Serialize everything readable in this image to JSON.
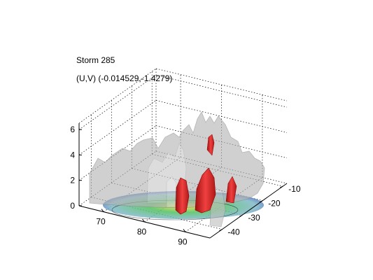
{
  "title_line1": "Storm 285",
  "title_line2": "(U,V) (-0.014529,-1.4279)",
  "chart_data": {
    "type": "3d-isosurface",
    "title": "Storm 285",
    "subtitle": "(U,V) (-0.014529,-1.4279)",
    "x_axis": {
      "label": "",
      "range": [
        64,
        96
      ],
      "ticks": [
        70,
        80,
        90
      ]
    },
    "y_axis": {
      "label": "",
      "range": [
        -46,
        -8
      ],
      "ticks": [
        -10,
        -20,
        -30,
        -40
      ]
    },
    "z_axis": {
      "label": "",
      "range": [
        0,
        6.5
      ],
      "ticks": [
        0,
        2,
        4,
        6
      ]
    },
    "grid": true,
    "surfaces": [
      {
        "color": "#b4b4b4",
        "style": "translucent grey isosurface"
      },
      {
        "color": "#e02020",
        "style": "red isosurface cores"
      },
      {
        "color": "#50c060",
        "style": "blue-green-yellow floor shading"
      }
    ],
    "uv": {
      "u": -0.014529,
      "v": -1.4279
    }
  },
  "colors": {
    "grey_surface": "#b4b4b4",
    "red_surface": "#e02020",
    "floor_green": "#50c060",
    "floor_blue": "#2a3fb0",
    "floor_yellow": "#e8e040"
  }
}
